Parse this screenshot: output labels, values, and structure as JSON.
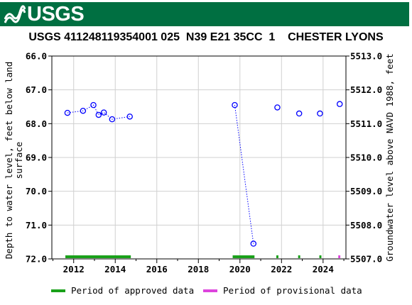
{
  "banner": {
    "logo_text": "USGS",
    "background_color": "#006f41"
  },
  "colors": {
    "data_point": "#0000ff",
    "approved": "#1aa11a",
    "provisional": "#dd44dd",
    "axis": "#000000"
  },
  "chart_data": {
    "type": "scatter",
    "title": "USGS 411248119354001 025  N39 E21 35CC  1    CHESTER LYONS",
    "ylabel_left": "Depth to water level, feet below land surface",
    "ylabel_right": "Groundwater level above NAVD 1988, feet",
    "xlim": [
      2010.95,
      2025.1
    ],
    "ylim_left": [
      66.0,
      72.0
    ],
    "ylim_right": [
      5513.0,
      5507.0
    ],
    "left_ticks": [
      "66.0",
      "67.0",
      "68.0",
      "69.0",
      "70.0",
      "71.0",
      "72.0"
    ],
    "right_ticks": [
      "5513.0",
      "5512.0",
      "5511.0",
      "5510.0",
      "5509.0",
      "5508.0",
      "5507.0"
    ],
    "x_ticks": [
      "2012",
      "2014",
      "2016",
      "2018",
      "2020",
      "2022",
      "2024"
    ],
    "grid": true,
    "series": [
      {
        "segments": [
          {
            "x": [
              2011.7,
              2012.45,
              2012.95,
              2013.2,
              2013.45,
              2013.85,
              2014.7
            ],
            "y": [
              67.68,
              67.62,
              67.45,
              67.74,
              67.67,
              67.87,
              67.79
            ]
          },
          {
            "x": [
              2019.75,
              2020.65
            ],
            "y": [
              67.45,
              71.55
            ]
          },
          {
            "x": [
              2021.8
            ],
            "y": [
              67.52
            ]
          },
          {
            "x": [
              2022.85
            ],
            "y": [
              67.7
            ]
          },
          {
            "x": [
              2023.85
            ],
            "y": [
              67.7
            ]
          },
          {
            "x": [
              2024.8
            ],
            "y": [
              67.42
            ]
          }
        ]
      }
    ],
    "approved_periods": [
      [
        2011.6,
        2014.75
      ],
      [
        2019.65,
        2020.7
      ],
      [
        2021.75,
        2021.85
      ],
      [
        2022.8,
        2022.9
      ],
      [
        2023.82,
        2023.92
      ]
    ],
    "provisional_periods": [
      [
        2024.73,
        2024.83
      ]
    ]
  },
  "legend": {
    "approved_label": "Period of approved data",
    "provisional_label": "Period of provisional data"
  }
}
